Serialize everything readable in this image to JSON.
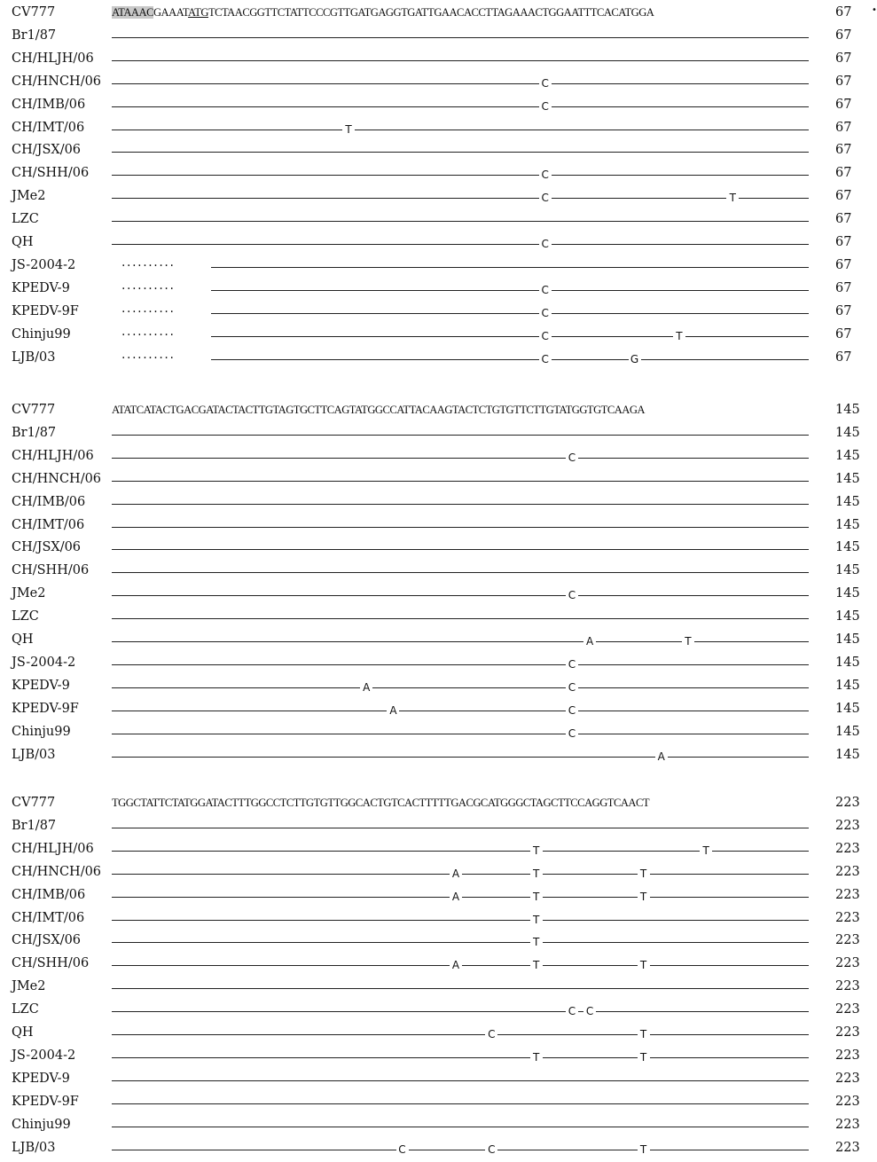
{
  "tick_mark": "•",
  "blocks": [
    {
      "ref_name": "CV777",
      "ref_segments": [
        {
          "text": "ATAAAC",
          "style": "highlight"
        },
        {
          "text": "GAAAT",
          "style": "plain"
        },
        {
          "text": "ATG",
          "style": "underline"
        },
        {
          "text": "TCTAACGGTTCTATTCCCGTTGATGAGGTGATTGAACACCTTAGAAACTGGAATTTCACATGGA",
          "style": "plain"
        }
      ],
      "ref_length": "67",
      "rows": [
        {
          "name": "Br1/87",
          "length": "67",
          "gap": false,
          "marks": []
        },
        {
          "name": "CH/HLJH/06",
          "length": "67",
          "gap": false,
          "marks": []
        },
        {
          "name": "CH/HNCH/06",
          "length": "67",
          "gap": false,
          "marks": [
            {
              "pos": 48,
              "base": "C"
            }
          ]
        },
        {
          "name": "CH/IMB/06",
          "length": "67",
          "gap": false,
          "marks": [
            {
              "pos": 48,
              "base": "C"
            }
          ]
        },
        {
          "name": "CH/IMT/06",
          "length": "67",
          "gap": false,
          "marks": [
            {
              "pos": 26,
              "base": "T"
            }
          ]
        },
        {
          "name": "CH/JSX/06",
          "length": "67",
          "gap": false,
          "marks": []
        },
        {
          "name": "CH/SHH/06",
          "length": "67",
          "gap": false,
          "marks": [
            {
              "pos": 48,
              "base": "C"
            }
          ]
        },
        {
          "name": "JMe2",
          "length": "67",
          "gap": false,
          "marks": [
            {
              "pos": 48,
              "base": "C"
            },
            {
              "pos": 69,
              "base": "T"
            }
          ]
        },
        {
          "name": "LZC",
          "length": "67",
          "gap": false,
          "marks": []
        },
        {
          "name": "QH",
          "length": "67",
          "gap": false,
          "marks": [
            {
              "pos": 48,
              "base": "C"
            }
          ]
        },
        {
          "name": "JS-2004-2",
          "length": "67",
          "gap": true,
          "dots": "..........",
          "marks": []
        },
        {
          "name": "KPEDV-9",
          "length": "67",
          "gap": true,
          "dots": "..........",
          "marks": [
            {
              "pos": 48,
              "base": "C"
            }
          ]
        },
        {
          "name": "KPEDV-9F",
          "length": "67",
          "gap": true,
          "dots": "..........",
          "marks": [
            {
              "pos": 48,
              "base": "C"
            }
          ]
        },
        {
          "name": "Chinju99",
          "length": "67",
          "gap": true,
          "dots": "..........",
          "marks": [
            {
              "pos": 48,
              "base": "C"
            },
            {
              "pos": 63,
              "base": "T"
            }
          ]
        },
        {
          "name": "LJB/03",
          "length": "67",
          "gap": true,
          "dots": "..........",
          "marks": [
            {
              "pos": 48,
              "base": "C"
            },
            {
              "pos": 58,
              "base": "G"
            }
          ]
        }
      ]
    },
    {
      "ref_name": "CV777",
      "ref_segments": [
        {
          "text": "ATATCATACTGACGATACTACTTGTAGTGCTTCAGTATGGCCATTACAAGTACTCTGTGTTCTTGTATGGTGTCAAGA",
          "style": "plain"
        }
      ],
      "ref_length": "145",
      "rows": [
        {
          "name": "Br1/87",
          "length": "145",
          "gap": false,
          "marks": []
        },
        {
          "name": "CH/HLJH/06",
          "length": "145",
          "gap": false,
          "marks": [
            {
              "pos": 51,
              "base": "C"
            }
          ]
        },
        {
          "name": "CH/HNCH/06",
          "length": "145",
          "gap": false,
          "marks": []
        },
        {
          "name": "CH/IMB/06",
          "length": "145",
          "gap": false,
          "marks": []
        },
        {
          "name": "CH/IMT/06",
          "length": "145",
          "gap": false,
          "marks": []
        },
        {
          "name": "CH/JSX/06",
          "length": "145",
          "gap": false,
          "marks": []
        },
        {
          "name": "CH/SHH/06",
          "length": "145",
          "gap": false,
          "marks": []
        },
        {
          "name": "JMe2",
          "length": "145",
          "gap": false,
          "marks": [
            {
              "pos": 51,
              "base": "C"
            }
          ]
        },
        {
          "name": "LZC",
          "length": "145",
          "gap": false,
          "marks": []
        },
        {
          "name": "QH",
          "length": "145",
          "gap": false,
          "marks": [
            {
              "pos": 53,
              "base": "A"
            },
            {
              "pos": 64,
              "base": "T"
            }
          ]
        },
        {
          "name": "JS-2004-2",
          "length": "145",
          "gap": false,
          "marks": [
            {
              "pos": 51,
              "base": "C"
            }
          ]
        },
        {
          "name": "KPEDV-9",
          "length": "145",
          "gap": false,
          "marks": [
            {
              "pos": 28,
              "base": "A"
            },
            {
              "pos": 51,
              "base": "C"
            }
          ]
        },
        {
          "name": "KPEDV-9F",
          "length": "145",
          "gap": false,
          "marks": [
            {
              "pos": 31,
              "base": "A"
            },
            {
              "pos": 51,
              "base": "C"
            }
          ]
        },
        {
          "name": "Chinju99",
          "length": "145",
          "gap": false,
          "marks": [
            {
              "pos": 51,
              "base": "C"
            }
          ]
        },
        {
          "name": "LJB/03",
          "length": "145",
          "gap": false,
          "marks": [
            {
              "pos": 61,
              "base": "A"
            }
          ]
        }
      ]
    },
    {
      "ref_name": "CV777",
      "ref_segments": [
        {
          "text": "TGGCTATTCTATGGATACTTTGGCCTCTTGTGTTGGCACTGTCACTTTTTGACGCATGGGCTAGCTTCCAGGTCAACT",
          "style": "plain"
        }
      ],
      "ref_length": "223",
      "rows": [
        {
          "name": "Br1/87",
          "length": "223",
          "gap": false,
          "marks": []
        },
        {
          "name": "CH/HLJH/06",
          "length": "223",
          "gap": false,
          "marks": [
            {
              "pos": 47,
              "base": "T"
            },
            {
              "pos": 66,
              "base": "T"
            }
          ]
        },
        {
          "name": "CH/HNCH/06",
          "length": "223",
          "gap": false,
          "marks": [
            {
              "pos": 38,
              "base": "A"
            },
            {
              "pos": 47,
              "base": "T"
            },
            {
              "pos": 59,
              "base": "T"
            }
          ]
        },
        {
          "name": "CH/IMB/06",
          "length": "223",
          "gap": false,
          "marks": [
            {
              "pos": 38,
              "base": "A"
            },
            {
              "pos": 47,
              "base": "T"
            },
            {
              "pos": 59,
              "base": "T"
            }
          ]
        },
        {
          "name": "CH/IMT/06",
          "length": "223",
          "gap": false,
          "marks": [
            {
              "pos": 47,
              "base": "T"
            }
          ]
        },
        {
          "name": "CH/JSX/06",
          "length": "223",
          "gap": false,
          "marks": [
            {
              "pos": 47,
              "base": "T"
            }
          ]
        },
        {
          "name": "CH/SHH/06",
          "length": "223",
          "gap": false,
          "marks": [
            {
              "pos": 38,
              "base": "A"
            },
            {
              "pos": 47,
              "base": "T"
            },
            {
              "pos": 59,
              "base": "T"
            }
          ]
        },
        {
          "name": "JMe2",
          "length": "223",
          "gap": false,
          "marks": []
        },
        {
          "name": "LZC",
          "length": "223",
          "gap": false,
          "marks": [
            {
              "pos": 51,
              "base": "C"
            },
            {
              "pos": 53,
              "base": "C"
            }
          ]
        },
        {
          "name": "QH",
          "length": "223",
          "gap": false,
          "marks": [
            {
              "pos": 42,
              "base": "C"
            },
            {
              "pos": 59,
              "base": "T"
            }
          ]
        },
        {
          "name": "JS-2004-2",
          "length": "223",
          "gap": false,
          "marks": [
            {
              "pos": 47,
              "base": "T"
            },
            {
              "pos": 59,
              "base": "T"
            }
          ]
        },
        {
          "name": "KPEDV-9",
          "length": "223",
          "gap": false,
          "marks": []
        },
        {
          "name": "KPEDV-9F",
          "length": "223",
          "gap": false,
          "marks": []
        },
        {
          "name": "Chinju99",
          "length": "223",
          "gap": false,
          "marks": []
        },
        {
          "name": "LJB/03",
          "length": "223",
          "gap": false,
          "marks": [
            {
              "pos": 32,
              "base": "C"
            },
            {
              "pos": 42,
              "base": "C"
            },
            {
              "pos": 59,
              "base": "T"
            }
          ]
        }
      ]
    }
  ]
}
